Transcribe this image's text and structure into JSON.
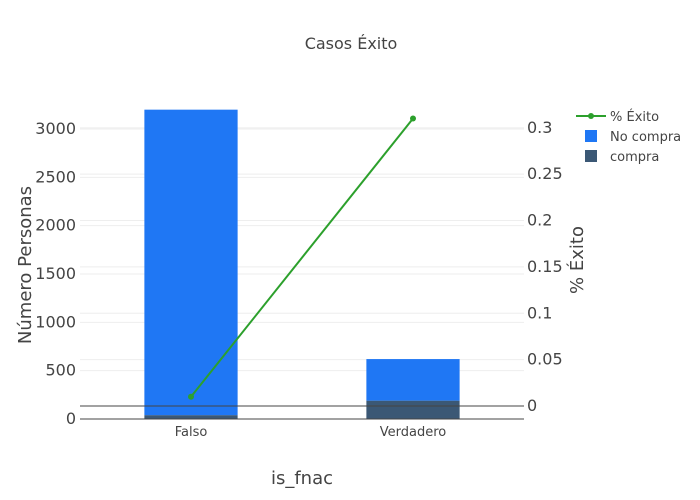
{
  "chart_data": {
    "type": "bar",
    "title": "Casos Éxito",
    "xlabel": "is_fnac",
    "ylabel": "Número Personas",
    "y2label": "% Éxito",
    "categories": [
      "Falso",
      "Verdadero"
    ],
    "barmode": "stack",
    "ylim": [
      0,
      3300
    ],
    "y2lim": [
      -0.014,
      0.33
    ],
    "yticks": [
      0,
      500,
      1000,
      1500,
      2000,
      2500,
      3000
    ],
    "y2ticks": [
      0,
      0.05,
      0.1,
      0.15,
      0.2,
      0.25,
      0.3
    ],
    "series": [
      {
        "name": "compra",
        "type": "bar",
        "axis": "y",
        "color": "#3b5875",
        "values": [
          40,
          190
        ]
      },
      {
        "name": "No compra",
        "type": "bar",
        "axis": "y",
        "color": "#1f77f4",
        "values": [
          3160,
          430
        ]
      },
      {
        "name": "% Éxito",
        "type": "line",
        "axis": "y2",
        "color": "#2ca02c",
        "values": [
          0.01,
          0.31
        ]
      }
    ],
    "legend": {
      "position": "right",
      "order": [
        "% Éxito",
        "No compra",
        "compra"
      ]
    },
    "grid": true
  }
}
